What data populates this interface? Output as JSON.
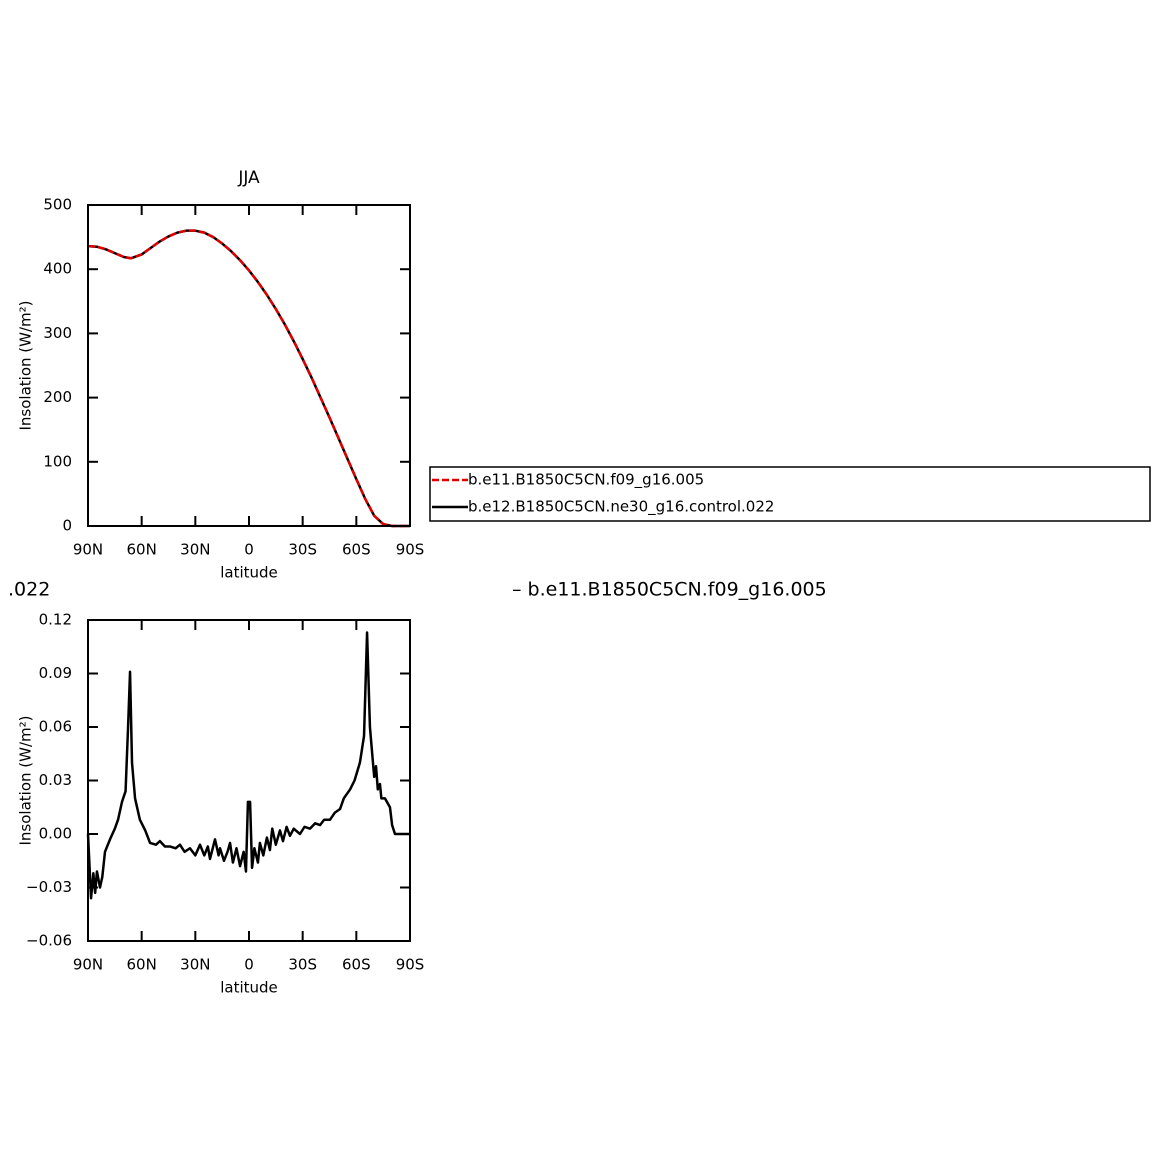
{
  "chart_data": [
    {
      "type": "line",
      "title": "JJA",
      "xlabel": "latitude",
      "ylabel": "Insolation (W/m²)",
      "x": [
        90,
        85,
        80,
        75,
        70,
        66,
        60,
        55,
        50,
        45,
        40,
        35,
        30,
        25,
        20,
        15,
        10,
        5,
        0,
        -5,
        -10,
        -15,
        -20,
        -25,
        -30,
        -35,
        -40,
        -45,
        -50,
        -55,
        -60,
        -65,
        -70,
        -75,
        -80,
        -85,
        -90
      ],
      "series": [
        {
          "name": "b.e11.B1850C5CN.f09_g16.005",
          "color": "#e00000",
          "line_style": "dashed",
          "values": [
            436,
            435,
            431,
            425,
            419,
            417,
            423,
            433,
            443,
            451,
            457,
            460,
            460,
            457,
            450,
            440,
            428,
            414,
            398,
            380,
            360,
            338,
            314,
            288,
            260,
            231,
            200,
            169,
            137,
            105,
            73,
            42,
            16,
            3,
            0,
            0,
            0
          ]
        },
        {
          "name": "b.e12.B1850C5CN.ne30_g16.control.022",
          "color": "#000000",
          "line_style": "solid",
          "values": [
            436,
            435,
            431,
            425,
            419,
            417,
            423,
            433,
            443,
            451,
            457,
            460,
            460,
            457,
            450,
            440,
            428,
            414,
            398,
            380,
            360,
            338,
            314,
            288,
            260,
            231,
            200,
            169,
            137,
            105,
            73,
            42,
            16,
            3,
            0,
            0,
            0
          ]
        }
      ],
      "xlim": [
        90,
        -90
      ],
      "xticks": [
        {
          "value": 90,
          "label": "90N"
        },
        {
          "value": 60,
          "label": "60N"
        },
        {
          "value": 30,
          "label": "30N"
        },
        0,
        {
          "value": -30,
          "label": "30S"
        },
        {
          "value": -60,
          "label": "60S"
        },
        {
          "value": -90,
          "label": "90S"
        }
      ],
      "ylim": [
        0,
        500
      ],
      "yticks": [
        0,
        100,
        200,
        300,
        400,
        500
      ],
      "legend": "right"
    },
    {
      "type": "line",
      "annotations": [
        ".022",
        "– b.e11.B1850C5CN.f09_g16.005"
      ],
      "xlabel": "latitude",
      "ylabel": "Insolation (W/m²)",
      "x": [
        90,
        88.3,
        87,
        86,
        85,
        83.3,
        82,
        80.5,
        77.7,
        75,
        73.2,
        71,
        69,
        67.6,
        66.5,
        65.4,
        63.7,
        61,
        58,
        55.3,
        52,
        49.8,
        47,
        44.2,
        41,
        38.6,
        36,
        33,
        30,
        27.4,
        25,
        23,
        21.8,
        19,
        17,
        16.2,
        14,
        12,
        10.6,
        9,
        7,
        5,
        3,
        1.7,
        0.6,
        -0.6,
        -1.7,
        -3,
        -5,
        -6.1,
        -8,
        -10,
        -11.7,
        -13,
        -15,
        -17.3,
        -19,
        -21,
        -22.9,
        -25,
        -28.5,
        -31,
        -34.1,
        -37,
        -39.7,
        -42,
        -45.3,
        -48,
        -50.9,
        -53,
        -56.5,
        -59,
        -62,
        -64.3,
        -66,
        -67.6,
        -69.3,
        -70,
        -71,
        -72,
        -73.2,
        -74,
        -76,
        -78.8,
        -80,
        -81.6,
        -84.4,
        -90
      ],
      "series": [
        {
          "color": "#000000",
          "values": [
            0,
            -0.036,
            -0.022,
            -0.033,
            -0.021,
            -0.03,
            -0.024,
            -0.01,
            -0.003,
            0.003,
            0.008,
            0.018,
            0.024,
            0.06,
            0.091,
            0.04,
            0.02,
            0.008,
            0.002,
            -0.005,
            -0.006,
            -0.004,
            -0.007,
            -0.007,
            -0.008,
            -0.006,
            -0.01,
            -0.008,
            -0.012,
            -0.006,
            -0.012,
            -0.007,
            -0.014,
            -0.003,
            -0.012,
            -0.008,
            -0.015,
            -0.01,
            -0.005,
            -0.016,
            -0.008,
            -0.018,
            -0.01,
            -0.021,
            0.018,
            0.018,
            -0.019,
            -0.008,
            -0.016,
            -0.005,
            -0.012,
            -0.002,
            -0.009,
            0.003,
            -0.006,
            0.002,
            -0.004,
            0.004,
            -0.001,
            0.003,
            0,
            0.004,
            0.003,
            0.006,
            0.005,
            0.008,
            0.008,
            0.012,
            0.014,
            0.02,
            0.025,
            0.03,
            0.04,
            0.055,
            0.113,
            0.06,
            0.04,
            0.032,
            0.038,
            0.025,
            0.028,
            0.02,
            0.02,
            0.015,
            0.005,
            0,
            0,
            0
          ]
        }
      ],
      "xlim": [
        90,
        -90
      ],
      "xticks": [
        {
          "value": 90,
          "label": "90N"
        },
        {
          "value": 60,
          "label": "60N"
        },
        {
          "value": 30,
          "label": "30N"
        },
        0,
        {
          "value": -30,
          "label": "30S"
        },
        {
          "value": -60,
          "label": "60S"
        },
        {
          "value": -90,
          "label": "90S"
        }
      ],
      "ylim": [
        -0.06,
        0.12
      ],
      "yticks": [
        {
          "value": -0.06,
          "label": "−0.06"
        },
        {
          "value": -0.03,
          "label": "−0.03"
        },
        {
          "value": 0,
          "label": "0.00"
        },
        0.03,
        0.06,
        0.09,
        0.12
      ]
    }
  ]
}
